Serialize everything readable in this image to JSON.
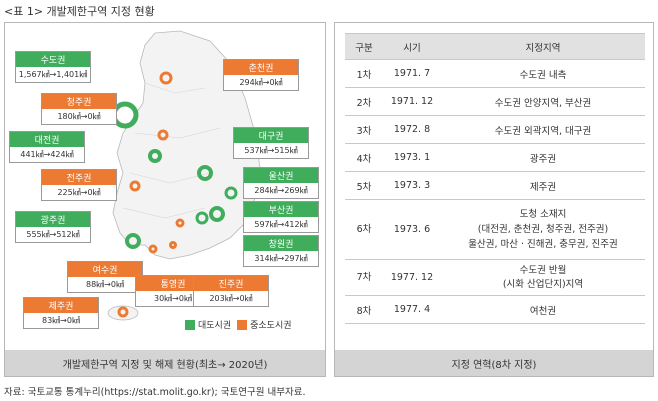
{
  "title": "<표 1> 개발제한구역 지정 현황",
  "map_panel": {
    "caption": "개발제한구역 지정 및 해제 현황(최초→ 2020년)",
    "labels": [
      {
        "name": "수도권",
        "value": "1,567㎢→1,401㎢",
        "type": "대도시권"
      },
      {
        "name": "청주권",
        "value": "180㎢→0㎢",
        "type": "중소도시권"
      },
      {
        "name": "대전권",
        "value": "441㎢→424㎢",
        "type": "대도시권"
      },
      {
        "name": "전주권",
        "value": "225㎢→0㎢",
        "type": "중소도시권"
      },
      {
        "name": "광주권",
        "value": "555㎢→512㎢",
        "type": "대도시권"
      },
      {
        "name": "여수권",
        "value": "88㎢→0㎢",
        "type": "중소도시권"
      },
      {
        "name": "제주권",
        "value": "83㎢→0㎢",
        "type": "중소도시권"
      },
      {
        "name": "통영권",
        "value": "30㎢→0㎢",
        "type": "중소도시권"
      },
      {
        "name": "진주권",
        "value": "203㎢→0㎢",
        "type": "중소도시권"
      },
      {
        "name": "창원권",
        "value": "314㎢→297㎢",
        "type": "대도시권"
      },
      {
        "name": "부산권",
        "value": "597㎢→412㎢",
        "type": "대도시권"
      },
      {
        "name": "울산권",
        "value": "284㎢→269㎢",
        "type": "대도시권"
      },
      {
        "name": "대구권",
        "value": "537㎢→515㎢",
        "type": "대도시권"
      },
      {
        "name": "춘천권",
        "value": "294㎢→0㎢",
        "type": "중소도시권"
      }
    ],
    "legend": [
      {
        "label": "대도시권",
        "color": "#3fad5c"
      },
      {
        "label": "중소도시권",
        "color": "#ec7a33"
      }
    ]
  },
  "table_panel": {
    "caption": "지정 연혁(8차 지정)",
    "headers": [
      "구분",
      "시기",
      "지정지역"
    ],
    "rows": [
      {
        "order": "1차",
        "date": "1971. 7",
        "area": "수도권 내측"
      },
      {
        "order": "2차",
        "date": "1971. 12",
        "area": "수도권 안양지역, 부산권"
      },
      {
        "order": "3차",
        "date": "1972. 8",
        "area": "수도권 외곽지역, 대구권"
      },
      {
        "order": "4차",
        "date": "1973. 1",
        "area": "광주권"
      },
      {
        "order": "5차",
        "date": "1973. 3",
        "area": "제주권"
      },
      {
        "order": "6차",
        "date": "1973. 6",
        "area_lines": [
          "도청 소재지",
          "(대전권, 춘천권, 청주권, 전주권)",
          "울산권, 마산 · 진해권, 충무권, 진주권"
        ]
      },
      {
        "order": "7차",
        "date": "1977. 12",
        "area_lines": [
          "수도권 반월",
          "(시화 산업단지)지역"
        ]
      },
      {
        "order": "8차",
        "date": "1977. 4",
        "area": "여천권"
      }
    ]
  },
  "source": "자료: 국토교통 통계누리(https://stat.molit.go.kr); 국토연구원 내부자료."
}
